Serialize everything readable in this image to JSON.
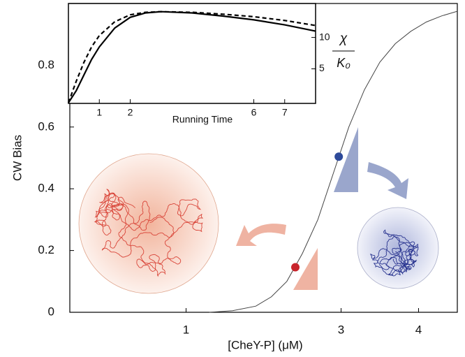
{
  "chart_data": [
    {
      "type": "line",
      "x_label": "[CheY-P] (μM)",
      "y_label": "CW Bias",
      "xlim": [
        -0.5,
        4.5
      ],
      "xticks": [
        1,
        3,
        4
      ],
      "ylim": [
        0,
        1.0
      ],
      "yticks": [
        0,
        0.2,
        0.4,
        0.6,
        0.8
      ],
      "series": [
        {
          "color": "#444444",
          "mode": "line",
          "x": [
            1.3,
            1.6,
            1.9,
            2.1,
            2.3,
            2.5,
            2.7,
            2.9,
            3.1,
            3.3,
            3.5,
            3.7,
            3.9,
            4.1,
            4.3,
            4.5
          ],
          "values": [
            0,
            0.005,
            0.02,
            0.05,
            0.1,
            0.19,
            0.3,
            0.45,
            0.6,
            0.72,
            0.81,
            0.87,
            0.91,
            0.94,
            0.96,
            0.975
          ]
        },
        {
          "color": "#c8252c",
          "mode": "markers",
          "x": [
            2.41
          ],
          "values": [
            0.146
          ]
        },
        {
          "color": "#2e4a9a",
          "mode": "markers",
          "x": [
            2.97
          ],
          "values": [
            0.504
          ]
        }
      ]
    },
    {
      "type": "line",
      "x_label": "Running Time",
      "y_label_numerator": "χ",
      "y_label_denominator": "K₀",
      "xlim": [
        0,
        8
      ],
      "xticks": [
        1,
        2,
        6,
        7
      ],
      "ylim": [
        -0.5,
        15.4
      ],
      "yticks": [
        5,
        10
      ],
      "y_axis_side": "right",
      "series": [
        {
          "color": "#000000",
          "mode": "line",
          "dash": false,
          "x": [
            0,
            0.25,
            0.5,
            0.75,
            1,
            1.5,
            2,
            2.5,
            3,
            4,
            5,
            6,
            7,
            8
          ],
          "values": [
            -0.4,
            1.5,
            4,
            6.5,
            8.5,
            11.5,
            13.2,
            13.9,
            14.1,
            13.9,
            13.4,
            12.8,
            12,
            11
          ]
        },
        {
          "color": "#000000",
          "mode": "line",
          "dash": true,
          "x": [
            0,
            0.25,
            0.5,
            0.75,
            1,
            1.5,
            2,
            2.5,
            3,
            4,
            5,
            6,
            7,
            8
          ],
          "values": [
            -0.4,
            3,
            6,
            8.5,
            10.3,
            12.5,
            13.6,
            14,
            14.1,
            14,
            13.7,
            13.3,
            12.7,
            11.9
          ]
        }
      ]
    }
  ]
}
